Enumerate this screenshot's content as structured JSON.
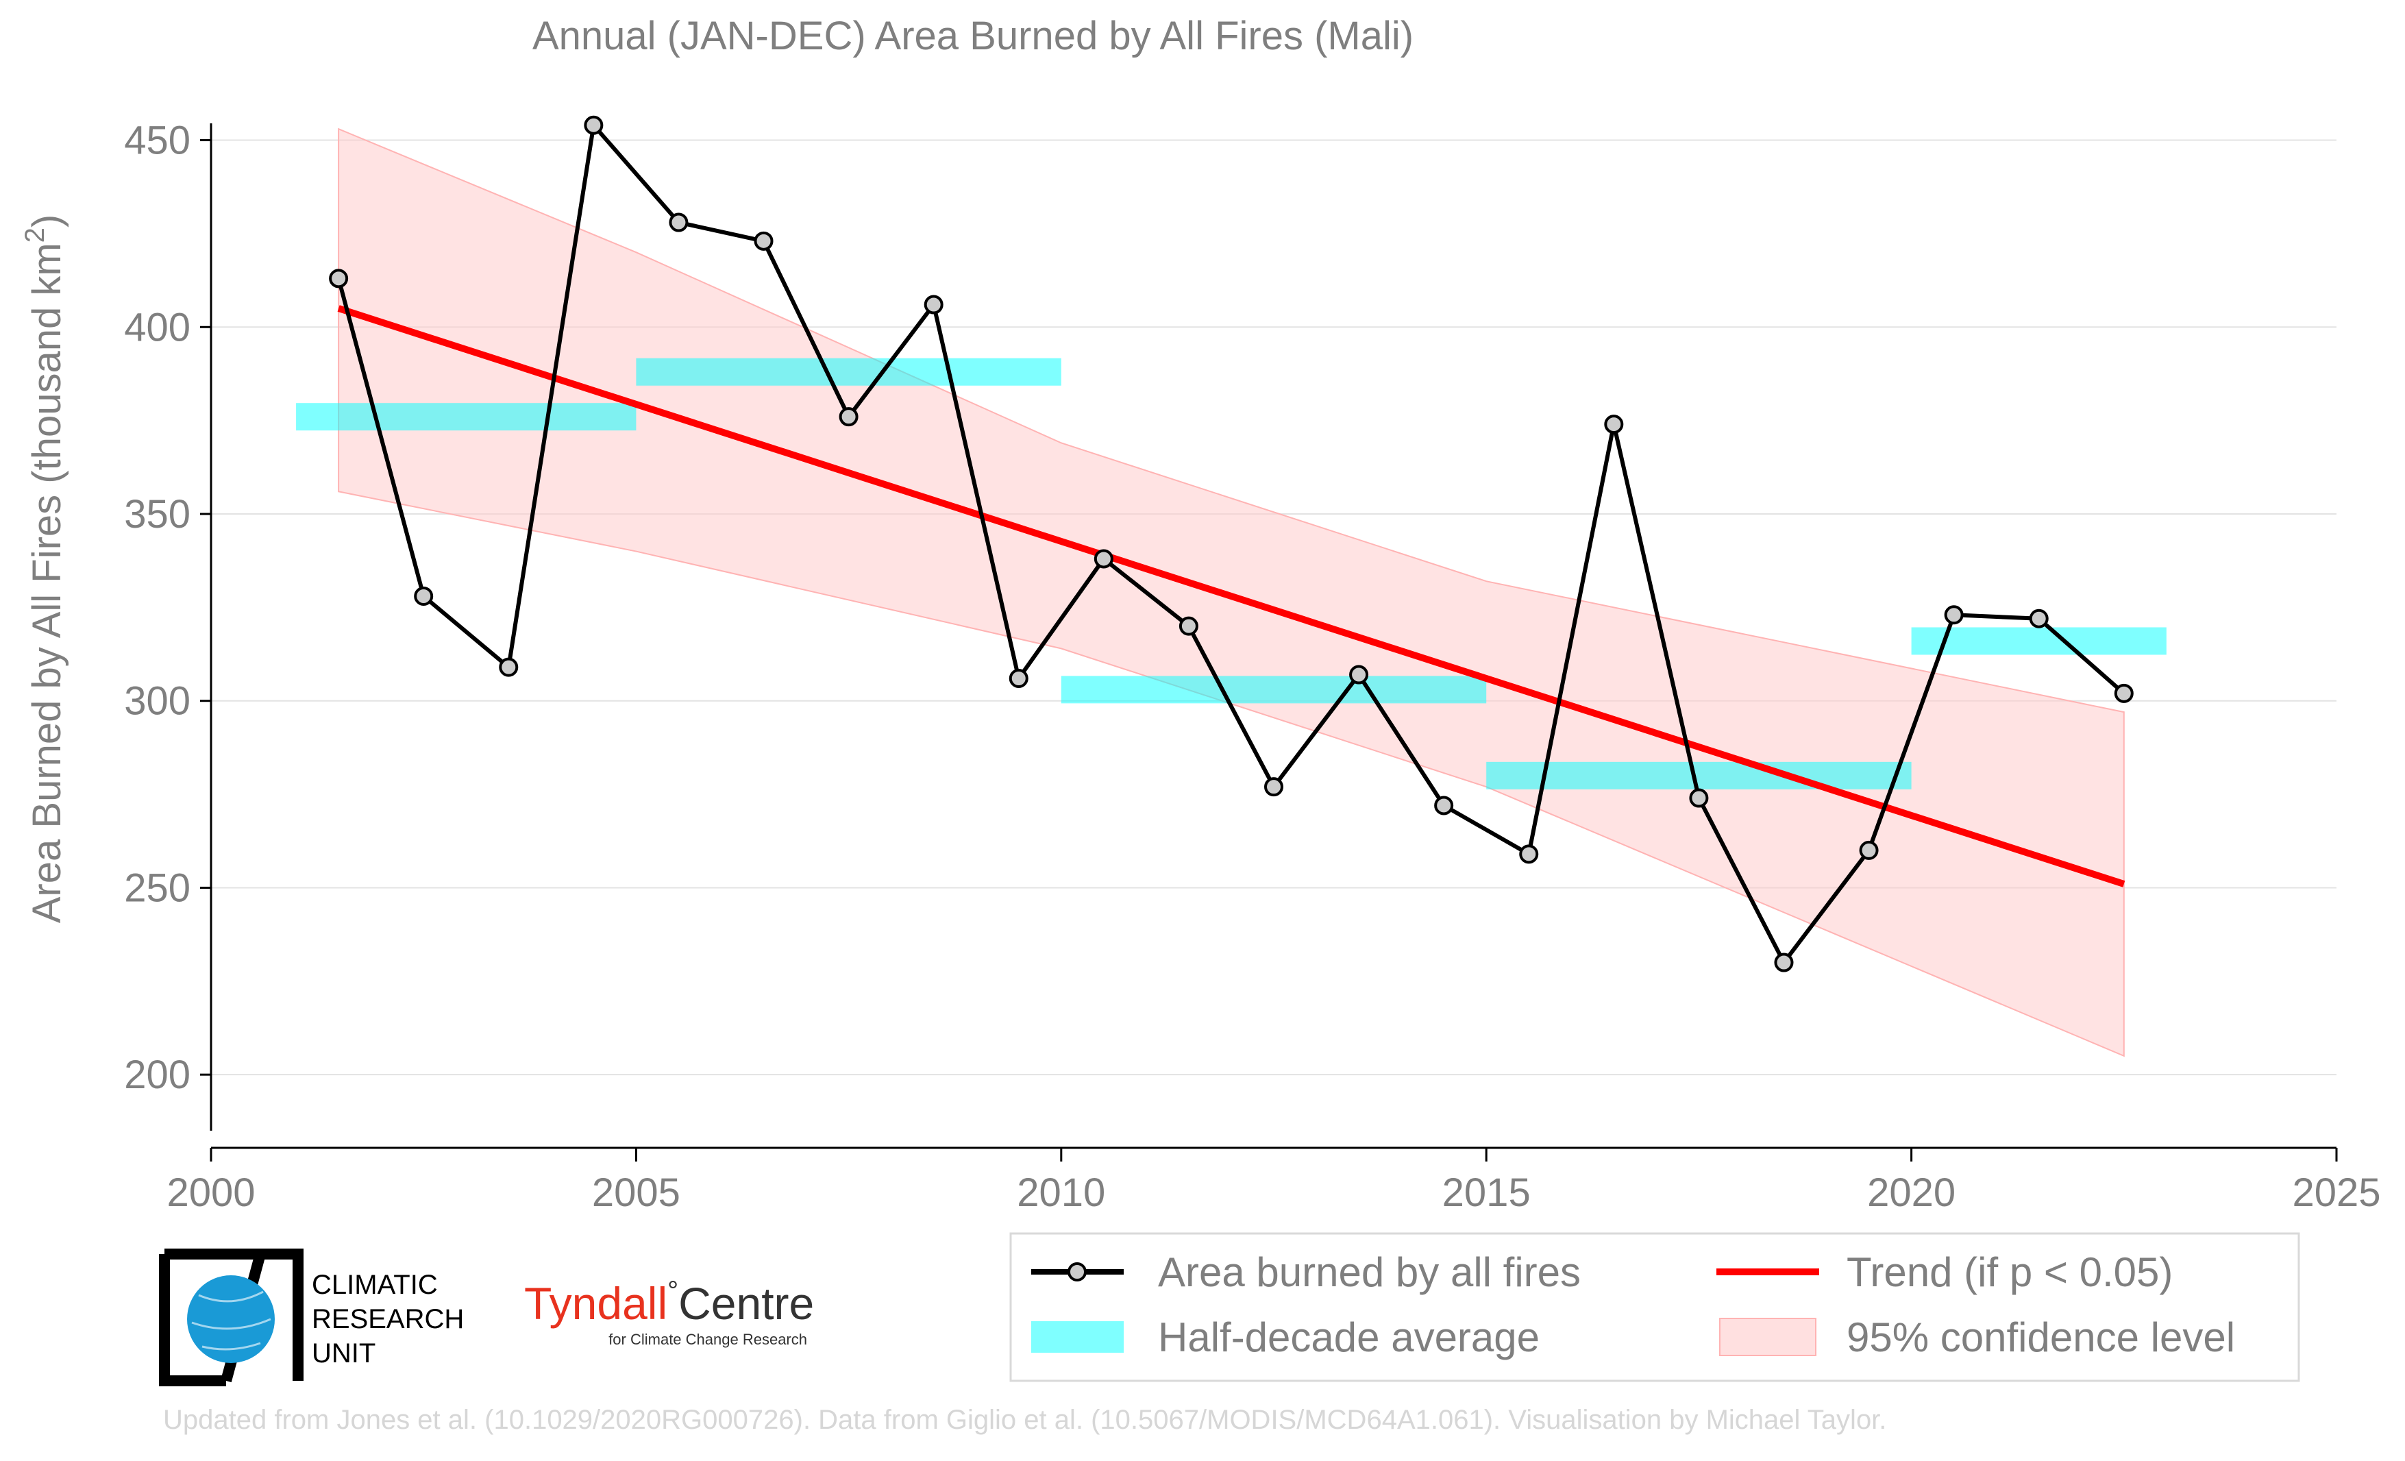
{
  "chart_data": {
    "type": "line",
    "title": "Annual (JAN-DEC) Area Burned by All Fires (Mali)",
    "ylabel_main": "Area Burned by All Fires (thousand km",
    "ylabel_sup": "2",
    "ylabel_close": ")",
    "xlabel": "",
    "xlim": [
      2000,
      2025
    ],
    "ylim": [
      185,
      460
    ],
    "xticks": [
      2000,
      2005,
      2010,
      2015,
      2020,
      2025
    ],
    "yticks": [
      200,
      250,
      300,
      350,
      400,
      450
    ],
    "grid": true,
    "legend_position": "bottom-right",
    "series": [
      {
        "name": "Area burned by all fires",
        "color": "#000000",
        "points": [
          {
            "x": 2001.5,
            "y": 413
          },
          {
            "x": 2002.5,
            "y": 328
          },
          {
            "x": 2003.5,
            "y": 309
          },
          {
            "x": 2004.5,
            "y": 454
          },
          {
            "x": 2005.5,
            "y": 428
          },
          {
            "x": 2006.5,
            "y": 423
          },
          {
            "x": 2007.5,
            "y": 376
          },
          {
            "x": 2008.5,
            "y": 406
          },
          {
            "x": 2009.5,
            "y": 306
          },
          {
            "x": 2010.5,
            "y": 338
          },
          {
            "x": 2011.5,
            "y": 320
          },
          {
            "x": 2012.5,
            "y": 277
          },
          {
            "x": 2013.5,
            "y": 307
          },
          {
            "x": 2014.5,
            "y": 272
          },
          {
            "x": 2015.5,
            "y": 259
          },
          {
            "x": 2016.5,
            "y": 374
          },
          {
            "x": 2017.5,
            "y": 274
          },
          {
            "x": 2018.5,
            "y": 230
          },
          {
            "x": 2019.5,
            "y": 260
          },
          {
            "x": 2020.5,
            "y": 323
          },
          {
            "x": 2021.5,
            "y": 322
          },
          {
            "x": 2022.5,
            "y": 302
          }
        ]
      },
      {
        "name": "Half-decade average",
        "color": "#00ffff",
        "segments": [
          {
            "x0": 2001,
            "x1": 2005,
            "y": 376
          },
          {
            "x0": 2005,
            "x1": 2010,
            "y": 388
          },
          {
            "x0": 2010,
            "x1": 2015,
            "y": 303
          },
          {
            "x0": 2015,
            "x1": 2020,
            "y": 280
          },
          {
            "x0": 2020,
            "x1": 2023,
            "y": 316
          }
        ]
      },
      {
        "name": "Trend (if p < 0.05)",
        "color": "#ff0000",
        "points": [
          {
            "x": 2001.5,
            "y": 405
          },
          {
            "x": 2022.5,
            "y": 251
          }
        ]
      },
      {
        "name": "95% confidence level",
        "color": "#ffcccc",
        "band": [
          {
            "x": 2001.5,
            "lo": 356,
            "hi": 453
          },
          {
            "x": 2005,
            "lo": 340,
            "hi": 420
          },
          {
            "x": 2010,
            "lo": 314,
            "hi": 369
          },
          {
            "x": 2015,
            "lo": 277,
            "hi": 332
          },
          {
            "x": 2022.5,
            "lo": 205,
            "hi": 297
          }
        ]
      }
    ]
  },
  "legend": [
    {
      "key": "line",
      "label": "Area burned by all fires",
      "color": "#000000"
    },
    {
      "key": "trend",
      "label": "Trend (if p < 0.05)",
      "color": "#ff0000"
    },
    {
      "key": "half",
      "label": "Half-decade average",
      "color": "#00ffff"
    },
    {
      "key": "band",
      "label": "95% confidence level",
      "color": "#ffcccc"
    }
  ],
  "logos": {
    "cru_line1": "CLIMATIC",
    "cru_line2": "RESEARCH",
    "cru_line3": "UNIT",
    "tyndall_name": "Tyndall",
    "tyndall_degree": "°",
    "tyndall_centre": "Centre",
    "tyndall_sub": "for Climate Change Research"
  },
  "credit": "Updated from Jones et al. (10.1029/2020RG000726). Data from Giglio et al. (10.5067/MODIS/MCD64A1.061). Visualisation by Michael Taylor."
}
